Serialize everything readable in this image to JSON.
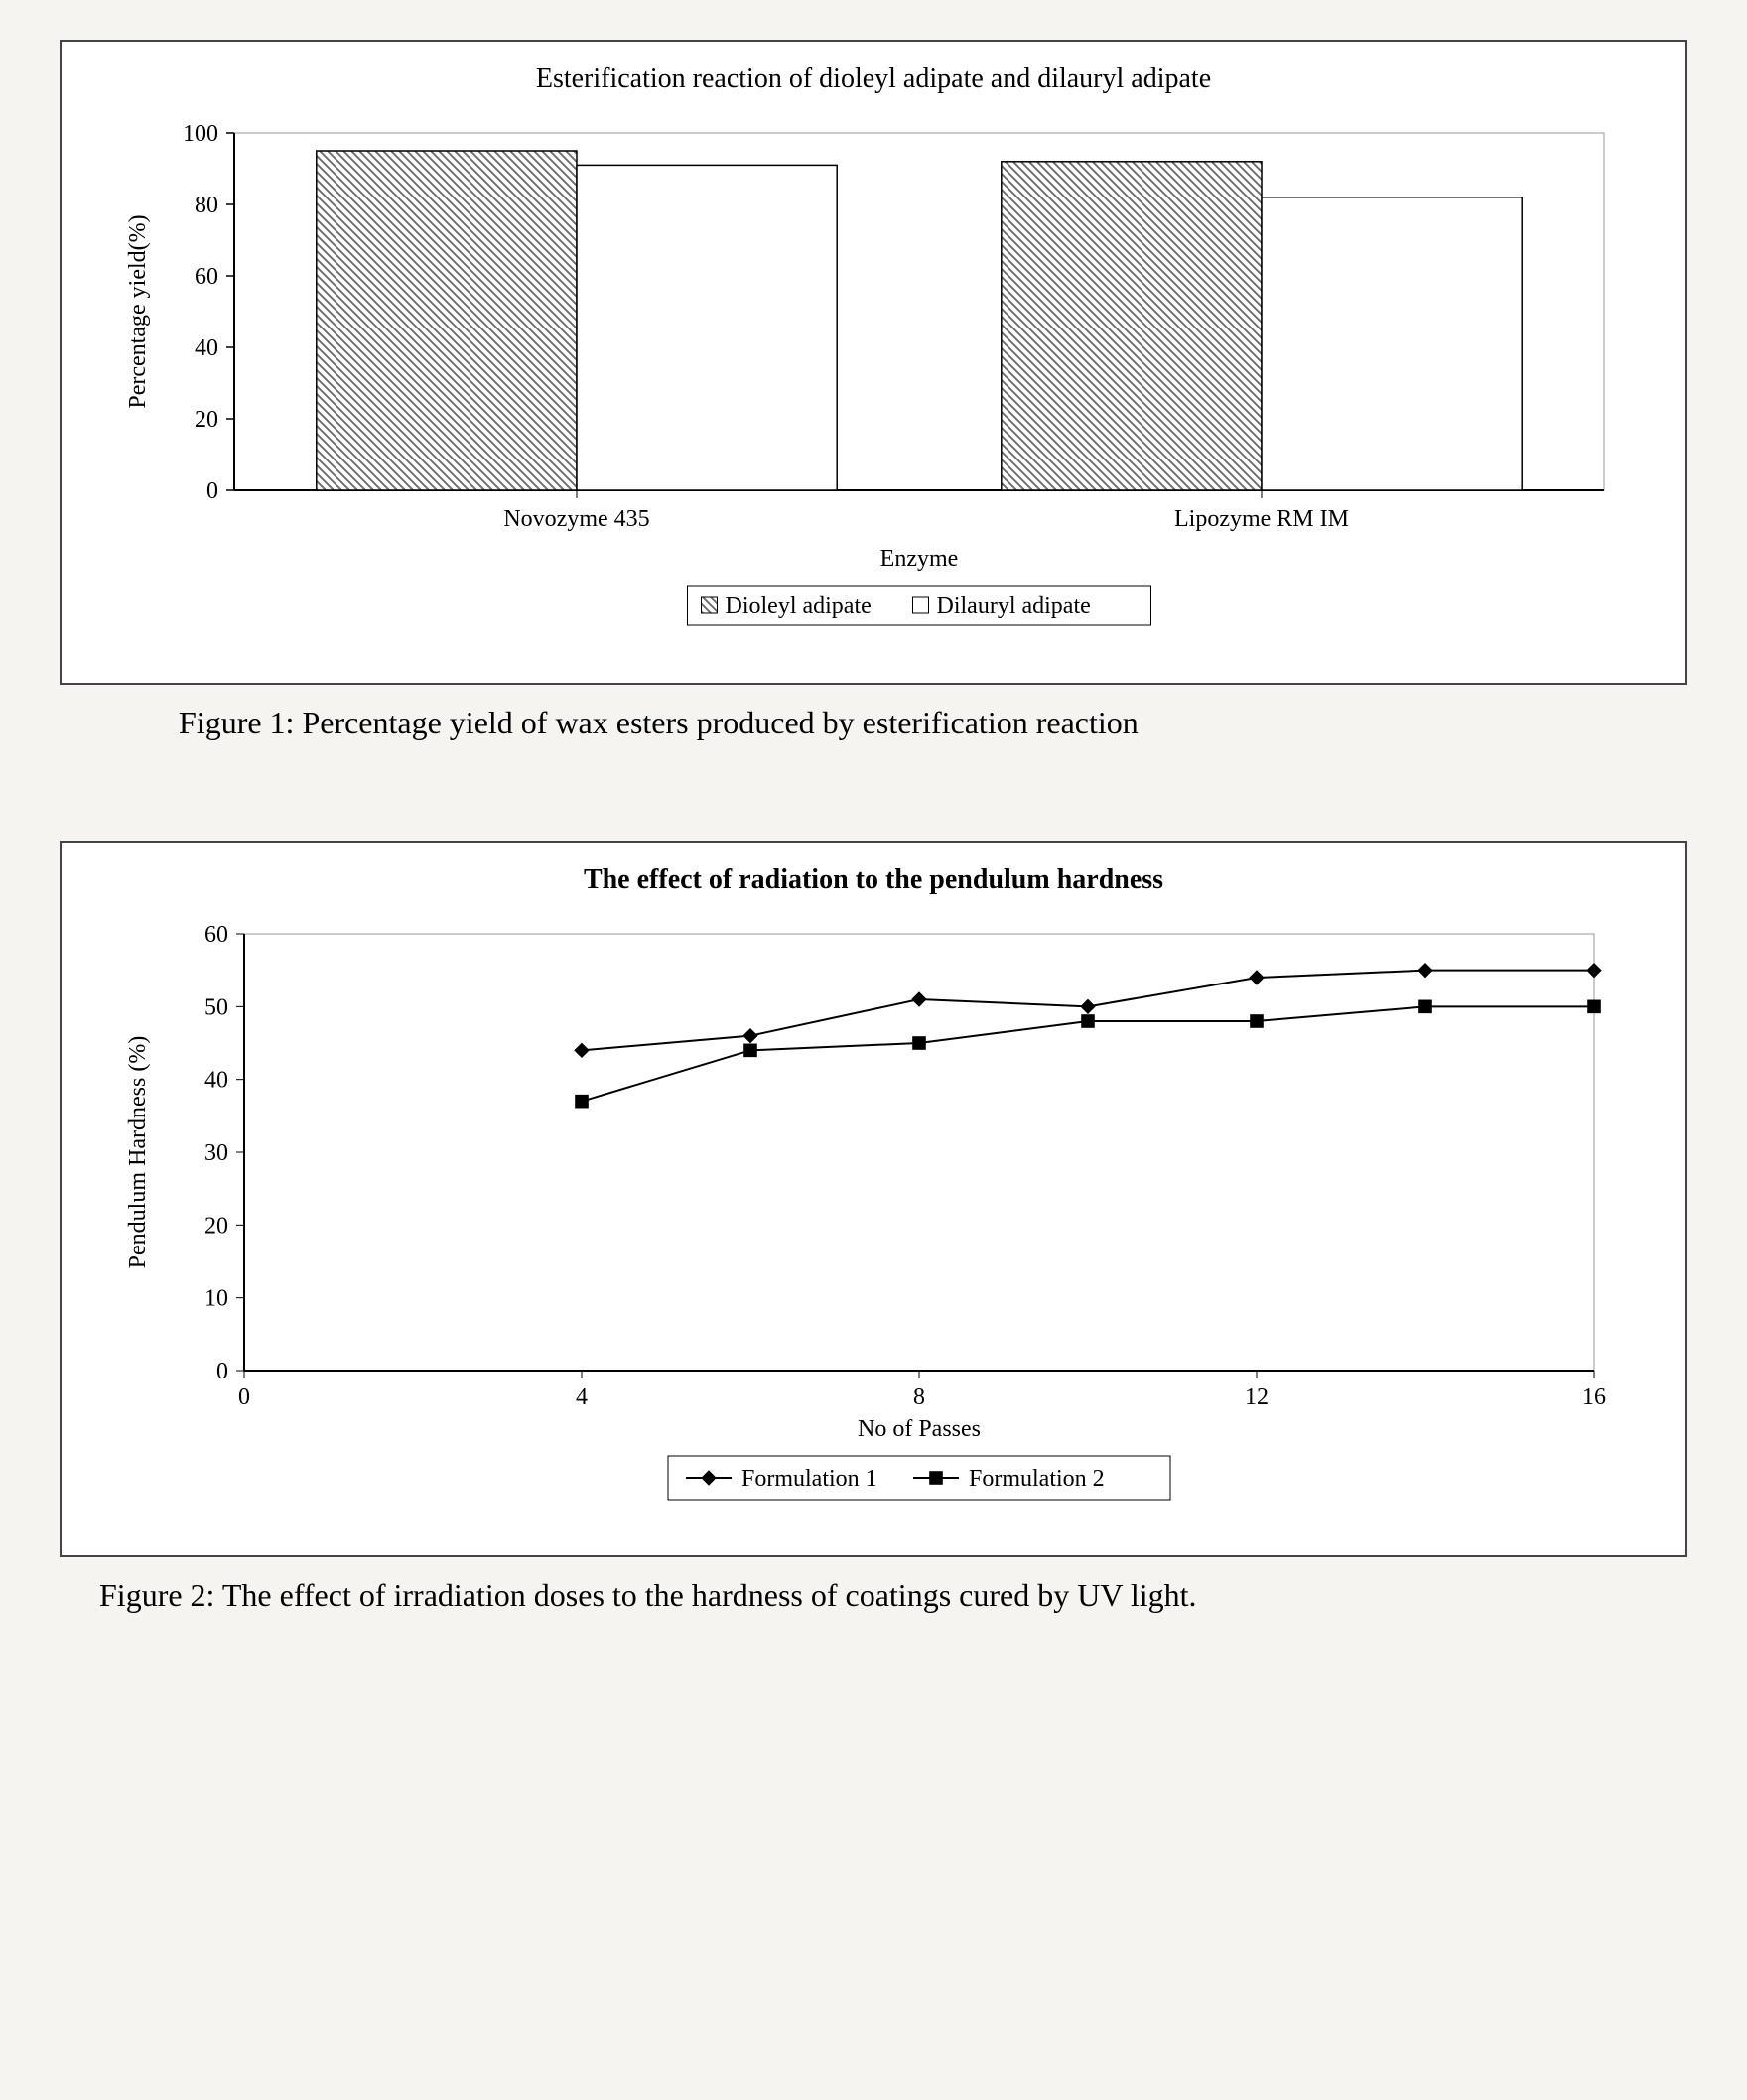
{
  "figure1": {
    "type": "bar",
    "title": "Esterification reaction of dioleyl adipate and dilauryl adipate",
    "title_fontsize": 28,
    "caption": "Figure 1: Percentage yield of wax esters produced by esterification reaction",
    "caption_fontsize": 32,
    "ylabel": "Percentage yield(%)",
    "xlabel": "Enzyme",
    "label_fontsize": 24,
    "categories": [
      "Novozyme 435",
      "Lipozyme RM IM"
    ],
    "series": [
      {
        "name": "Dioleyl adipate",
        "values": [
          95,
          92
        ],
        "fill": "hatch",
        "fill_color": "#707070",
        "border": "#000000"
      },
      {
        "name": "Dilauryl adipate",
        "values": [
          91,
          82
        ],
        "fill": "solid",
        "fill_color": "#ffffff",
        "border": "#000000"
      }
    ],
    "ylim": [
      0,
      100
    ],
    "ytick_step": 20,
    "tick_fontsize": 24,
    "background_color": "#ffffff",
    "axis_color": "#000000",
    "bar_width_ratio": 0.38,
    "legend": {
      "border": "#000000",
      "box_size": 16,
      "fontsize": 24
    },
    "plot_border": "#999999"
  },
  "figure2": {
    "type": "line",
    "title": "The effect of radiation to the pendulum hardness",
    "title_fontsize": 28,
    "title_weight": "bold",
    "caption": "Figure 2: The effect of irradiation doses to the hardness of coatings cured by UV light.",
    "caption_fontsize": 32,
    "ylabel": "Pendulum Hardness (%)",
    "xlabel": "No of Passes",
    "label_fontsize": 24,
    "xlim": [
      0,
      16
    ],
    "xtick_step": 4,
    "ylim": [
      0,
      60
    ],
    "ytick_step": 10,
    "tick_fontsize": 24,
    "background_color": "#ffffff",
    "axis_color": "#000000",
    "plot_border": "#999999",
    "series": [
      {
        "name": "Formulation 1",
        "marker": "diamond",
        "line_color": "#000000",
        "marker_fill": "#000000",
        "x": [
          4,
          6,
          8,
          10,
          12,
          14,
          16
        ],
        "y": [
          44,
          46,
          51,
          50,
          54,
          55,
          55
        ]
      },
      {
        "name": "Formulation 2",
        "marker": "square",
        "line_color": "#000000",
        "marker_fill": "#000000",
        "x": [
          4,
          6,
          8,
          10,
          12,
          14,
          16
        ],
        "y": [
          37,
          44,
          45,
          48,
          48,
          50,
          50
        ]
      }
    ],
    "legend": {
      "border": "#000000",
      "fontsize": 24
    }
  }
}
